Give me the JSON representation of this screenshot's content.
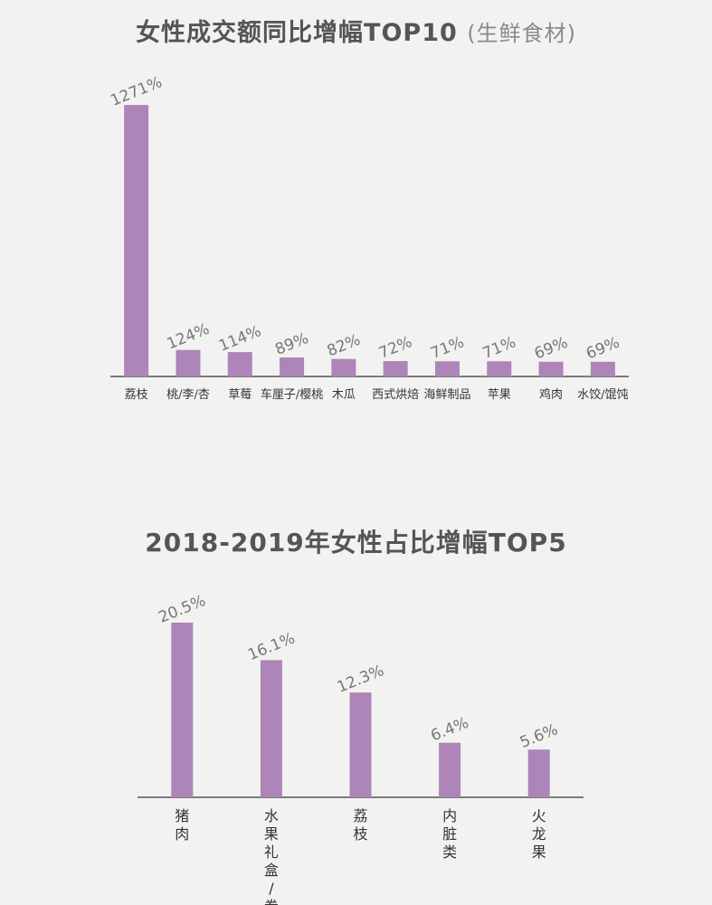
{
  "chart_data": [
    {
      "type": "bar",
      "title": "女性成交额同比增幅TOP10",
      "subtitle": "(生鲜食材)",
      "categories": [
        "荔枝",
        "桃/李/杏",
        "草莓",
        "车厘子/樱桃",
        "木瓜",
        "西式烘焙",
        "海鲜制品",
        "苹果",
        "鸡肉",
        "水饺/馄饨"
      ],
      "values": [
        1271,
        124,
        114,
        89,
        82,
        72,
        71,
        71,
        69,
        69
      ],
      "value_labels": [
        "1271%",
        "124%",
        "114%",
        "89%",
        "82%",
        "72%",
        "71%",
        "71%",
        "69%",
        "69%"
      ],
      "unit": "%",
      "grid": false,
      "legend": "none",
      "colors": {
        "bar": "#ad85b8"
      }
    },
    {
      "type": "bar",
      "title": "2018-2019年女性占比增幅TOP5",
      "categories": [
        "猪肉",
        "水果礼盒/券",
        "荔枝",
        "内脏类",
        "火龙果"
      ],
      "values": [
        20.5,
        16.1,
        12.3,
        6.4,
        5.6
      ],
      "value_labels": [
        "20.5%",
        "16.1%",
        "12.3%",
        "6.4%",
        "5.6%"
      ],
      "unit": "%",
      "grid": false,
      "legend": "none",
      "colors": {
        "bar": "#ad85b8"
      }
    }
  ]
}
